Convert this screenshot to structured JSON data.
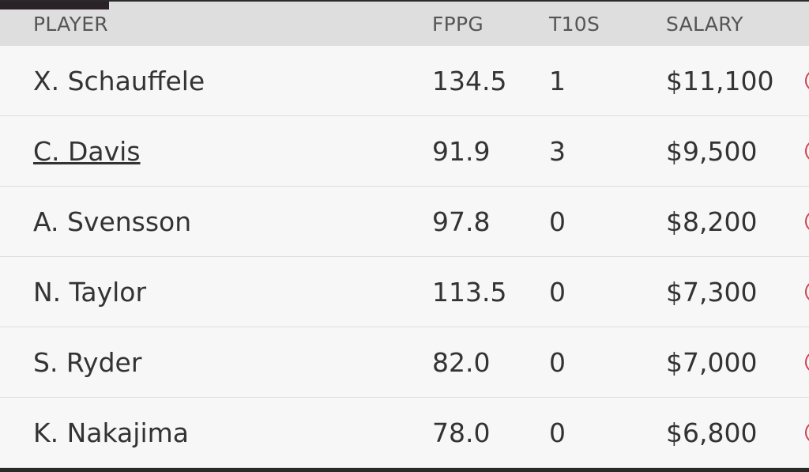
{
  "table": {
    "headers": [
      "PLAYER",
      "FPPG",
      "T10S",
      "SALARY"
    ],
    "rows": [
      [
        "X. Schauffele",
        "134.5",
        "1",
        "$11,100"
      ],
      [
        "C. Davis",
        "91.9",
        "3",
        "$9,500"
      ],
      [
        "A. Svensson",
        "97.8",
        "0",
        "$8,200"
      ],
      [
        "N. Taylor",
        "113.5",
        "0",
        "$7,300"
      ],
      [
        "S. Ryder",
        "82.0",
        "0",
        "$7,000"
      ],
      [
        "K. Nakajima",
        "78.0",
        "0",
        "$6,800"
      ]
    ]
  }
}
